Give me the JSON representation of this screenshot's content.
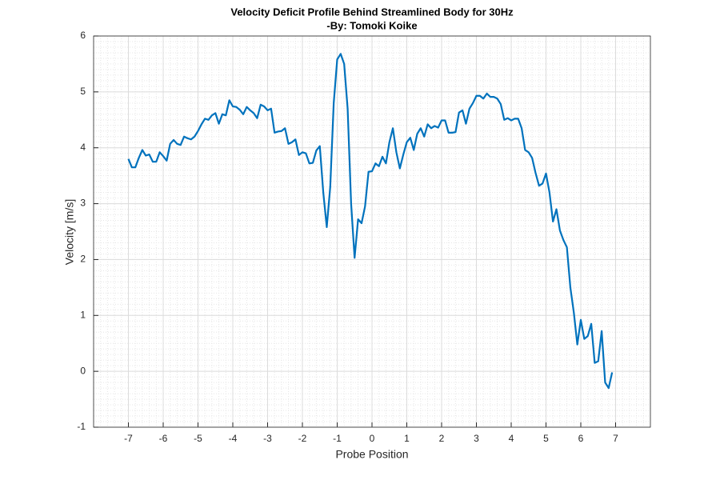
{
  "chart_data": {
    "type": "line",
    "title": [
      "Velocity Deficit Profile Behind Streamlined Body for 30Hz",
      "-By: Tomoki Koike"
    ],
    "xlabel": "Probe Position",
    "ylabel": "Velocity [m/s]",
    "xlim": [
      -8,
      8
    ],
    "xticks": [
      -7,
      -6,
      -5,
      -4,
      -3,
      -2,
      -1,
      0,
      1,
      2,
      3,
      4,
      5,
      6,
      7
    ],
    "ylim": [
      -1,
      6
    ],
    "yticks": [
      -1,
      0,
      1,
      2,
      3,
      4,
      5,
      6
    ],
    "grid": true,
    "minor_grid": true,
    "x": [
      -7,
      -6.9,
      -6.8,
      -6.7,
      -6.6,
      -6.5,
      -6.4,
      -6.3,
      -6.2,
      -6.1,
      -6,
      -5.9,
      -5.8,
      -5.7,
      -5.6,
      -5.5,
      -5.4,
      -5.3,
      -5.2,
      -5.1,
      -5,
      -4.9,
      -4.8,
      -4.7,
      -4.6,
      -4.5,
      -4.4,
      -4.3,
      -4.2,
      -4.1,
      -4,
      -3.9,
      -3.8,
      -3.7,
      -3.6,
      -3.5,
      -3.4,
      -3.3,
      -3.2,
      -3.1,
      -3,
      -2.9,
      -2.8,
      -2.7,
      -2.6,
      -2.5,
      -2.4,
      -2.3,
      -2.2,
      -2.1,
      -2,
      -1.9,
      -1.8,
      -1.7,
      -1.6,
      -1.5,
      -1.4,
      -1.3,
      -1.2,
      -1.1,
      -1,
      -0.9,
      -0.8,
      -0.7,
      -0.6,
      -0.5,
      -0.4,
      -0.3,
      -0.2,
      -0.1,
      0,
      0.1,
      0.2,
      0.3,
      0.4,
      0.5,
      0.6,
      0.7,
      0.8,
      0.9,
      1,
      1.1,
      1.2,
      1.3,
      1.4,
      1.5,
      1.6,
      1.7,
      1.8,
      1.9,
      2,
      2.1,
      2.2,
      2.3,
      2.4,
      2.5,
      2.6,
      2.7,
      2.8,
      2.9,
      3,
      3.1,
      3.2,
      3.3,
      3.4,
      3.5,
      3.6,
      3.7,
      3.8,
      3.9,
      4,
      4.1,
      4.2,
      4.3,
      4.4,
      4.5,
      4.6,
      4.7,
      4.8,
      4.9,
      5,
      5.1,
      5.2,
      5.3,
      5.4,
      5.5,
      5.6,
      5.7,
      5.8,
      5.9,
      6,
      6.1,
      6.2,
      6.3,
      6.4,
      6.5,
      6.6,
      6.7,
      6.8,
      6.9
    ],
    "series": [
      {
        "color": "#0072bd",
        "values": [
          3.8,
          3.65,
          3.65,
          3.82,
          3.96,
          3.86,
          3.88,
          3.75,
          3.75,
          3.92,
          3.85,
          3.77,
          4.07,
          4.14,
          4.07,
          4.05,
          4.2,
          4.17,
          4.15,
          4.2,
          4.3,
          4.42,
          4.52,
          4.5,
          4.58,
          4.62,
          4.43,
          4.6,
          4.58,
          4.85,
          4.74,
          4.73,
          4.68,
          4.6,
          4.73,
          4.67,
          4.62,
          4.53,
          4.77,
          4.74,
          4.67,
          4.7,
          4.27,
          4.29,
          4.3,
          4.35,
          4.07,
          4.1,
          4.15,
          3.87,
          3.92,
          3.9,
          3.72,
          3.73,
          3.95,
          4.03,
          3.2,
          2.58,
          3.3,
          4.8,
          5.58,
          5.68,
          5.5,
          4.7,
          3.0,
          2.03,
          2.72,
          2.65,
          2.95,
          3.57,
          3.58,
          3.72,
          3.67,
          3.84,
          3.72,
          4.1,
          4.35,
          3.92,
          3.63,
          3.88,
          4.1,
          4.18,
          3.96,
          4.25,
          4.35,
          4.2,
          4.42,
          4.35,
          4.39,
          4.36,
          4.49,
          4.49,
          4.27,
          4.27,
          4.28,
          4.63,
          4.67,
          4.43,
          4.7,
          4.8,
          4.93,
          4.93,
          4.88,
          4.97,
          4.91,
          4.91,
          4.88,
          4.78,
          4.5,
          4.53,
          4.49,
          4.52,
          4.52,
          4.35,
          3.96,
          3.92,
          3.82,
          3.55,
          3.32,
          3.36,
          3.54,
          3.2,
          2.68,
          2.9,
          2.52,
          2.35,
          2.22,
          1.5,
          1.05,
          0.48,
          0.92,
          0.58,
          0.63,
          0.85,
          0.15,
          0.18,
          0.72,
          -0.2,
          -0.3,
          -0.02
        ]
      }
    ]
  }
}
